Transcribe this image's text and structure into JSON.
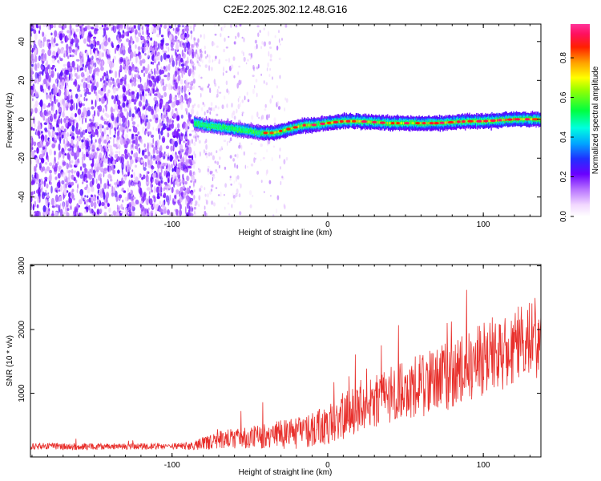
{
  "title": "C2E2.2025.302.12.48.G16",
  "colors": {
    "snr_line": "#e8302c",
    "frame": "#000000"
  },
  "chart_data": [
    {
      "type": "heatmap",
      "name": "spectrogram",
      "title": "C2E2.2025.302.12.48.G16",
      "xlabel": "Height of straight line (km)",
      "ylabel": "Frequency (Hz)",
      "xlim": [
        -191,
        137
      ],
      "ylim": [
        -50,
        49
      ],
      "x_ticks": [
        -100,
        0,
        100
      ],
      "x_tick_labels": [
        "-100",
        "0",
        "100"
      ],
      "y_ticks": [
        -40,
        -20,
        0,
        20,
        40
      ],
      "y_tick_labels": [
        "-40",
        "-20",
        "0",
        "20",
        "40"
      ],
      "colorbar": {
        "label": "Normalized spectral amplitude",
        "range": [
          0,
          0.97
        ],
        "ticks": [
          0,
          0.2,
          0.4,
          0.6,
          0.8
        ],
        "tick_labels": [
          "0.0",
          "0.2",
          "0.4",
          "0.6",
          "0.8"
        ],
        "colormap": "rainbow (white-magenta-purple-blue-cyan-green-yellow-orange-red-pink)"
      },
      "noise_regime": {
        "x_range": [
          -191,
          -86
        ],
        "freq_range": [
          -50,
          49
        ],
        "amplitude": "0.1-0.25"
      },
      "signal_track": {
        "x": [
          -86,
          -80,
          -70,
          -60,
          -50,
          -45,
          -40,
          -35,
          -30,
          -25,
          -20,
          -15,
          -10,
          -5,
          0,
          10,
          20,
          30,
          40,
          50,
          60,
          70,
          80,
          90,
          100,
          110,
          120,
          130,
          137
        ],
        "freq": [
          -2,
          -3,
          -4,
          -5,
          -6,
          -7,
          -7,
          -7,
          -6,
          -5,
          -4,
          -3,
          -3,
          -2.5,
          -2,
          -1,
          -1,
          -1.5,
          -2,
          -2,
          -2,
          -2,
          -1.5,
          -1,
          -1,
          -0.5,
          0,
          0,
          0
        ],
        "peak_amplitude": [
          0.6,
          0.5,
          0.55,
          0.6,
          0.6,
          0.65,
          0.75,
          0.8,
          0.8,
          0.8,
          0.8,
          0.8,
          0.85,
          0.7,
          0.75,
          0.85,
          0.85,
          0.8,
          0.8,
          0.8,
          0.8,
          0.85,
          0.8,
          0.8,
          0.85,
          0.9,
          0.9,
          0.85,
          0.8
        ]
      }
    },
    {
      "type": "line",
      "name": "snr",
      "xlabel": "Height of straight line (km)",
      "ylabel": "SNR (10 * v/v)",
      "xlim": [
        -191,
        137
      ],
      "ylim": [
        0,
        3020
      ],
      "x_ticks": [
        -100,
        0,
        100
      ],
      "x_tick_labels": [
        "-100",
        "0",
        "100"
      ],
      "y_ticks": [
        1000,
        2000,
        3000
      ],
      "y_tick_labels": [
        "1000",
        "2000",
        "3000"
      ],
      "series": [
        {
          "name": "SNR",
          "envelope_x": [
            -191,
            -160,
            -130,
            -100,
            -85,
            -75,
            -65,
            -50,
            -40,
            -30,
            -20,
            -10,
            0,
            5,
            10,
            20,
            30,
            40,
            50,
            60,
            70,
            80,
            90,
            100,
            110,
            120,
            130,
            137
          ],
          "median": [
            170,
            160,
            165,
            165,
            180,
            250,
            280,
            310,
            330,
            350,
            380,
            420,
            500,
            560,
            640,
            800,
            900,
            980,
            1050,
            1120,
            1200,
            1300,
            1420,
            1550,
            1650,
            1750,
            1850,
            1900
          ],
          "spread": [
            60,
            55,
            55,
            55,
            80,
            150,
            170,
            200,
            220,
            250,
            280,
            300,
            350,
            380,
            420,
            450,
            480,
            500,
            520,
            550,
            580,
            600,
            620,
            650,
            680,
            700,
            720,
            720
          ]
        }
      ]
    }
  ],
  "labels": {
    "top_xlabel": "Height of straight line (km)",
    "top_ylabel": "Frequency (Hz)",
    "bottom_xlabel": "Height of straight line (km)",
    "bottom_ylabel": "SNR (10 * v/v)",
    "colorbar_label": "Normalized spectral amplitude"
  }
}
